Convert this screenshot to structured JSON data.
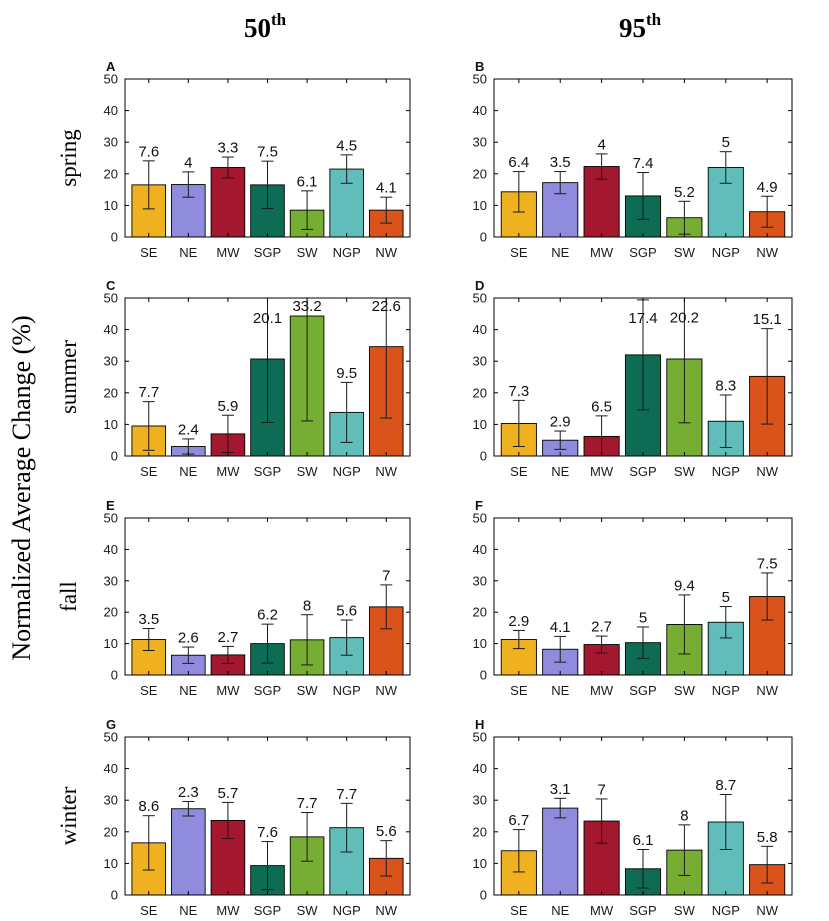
{
  "figure": {
    "column_headers": [
      {
        "number": "50",
        "suffix": "th"
      },
      {
        "number": "95",
        "suffix": "th"
      }
    ],
    "row_labels": [
      "spring",
      "summer",
      "fall",
      "winter"
    ],
    "y_axis_label": "Normalized Average Change (%)"
  },
  "colors": {
    "SE": "#EFB120",
    "NE": "#8F8CDE",
    "MW": "#A3182F",
    "SGP": "#0E6B54",
    "SW": "#76AD33",
    "NGP": "#60BDBA",
    "NW": "#D9531B"
  },
  "chart_data": [
    {
      "panel": "A",
      "type": "bar",
      "categories": [
        "SE",
        "NE",
        "MW",
        "SGP",
        "SW",
        "NGP",
        "NW"
      ],
      "values": [
        16.5,
        16.6,
        22.0,
        16.5,
        8.5,
        21.5,
        8.5
      ],
      "errors": [
        7.6,
        4,
        3.3,
        7.5,
        6.1,
        4.5,
        4.1
      ],
      "ylim": [
        0,
        50
      ],
      "yticks": [
        0,
        10,
        20,
        30,
        40,
        50
      ]
    },
    {
      "panel": "B",
      "type": "bar",
      "categories": [
        "SE",
        "NE",
        "MW",
        "SGP",
        "SW",
        "NGP",
        "NW"
      ],
      "values": [
        14.3,
        17.2,
        22.3,
        13.0,
        6.1,
        22.0,
        8.0
      ],
      "errors": [
        6.4,
        3.5,
        4,
        7.4,
        5.2,
        5,
        4.9
      ],
      "ylim": [
        0,
        50
      ],
      "yticks": [
        0,
        10,
        20,
        30,
        40,
        50
      ]
    },
    {
      "panel": "C",
      "type": "bar",
      "categories": [
        "SE",
        "NE",
        "MW",
        "SGP",
        "SW",
        "NGP",
        "NW"
      ],
      "values": [
        9.5,
        3.0,
        7.0,
        30.7,
        44.3,
        13.8,
        34.6
      ],
      "errors": [
        7.7,
        2.4,
        5.9,
        20.1,
        33.2,
        9.5,
        22.6
      ],
      "ylim": [
        0,
        50
      ],
      "yticks": [
        0,
        10,
        20,
        30,
        40,
        50
      ]
    },
    {
      "panel": "D",
      "type": "bar",
      "categories": [
        "SE",
        "NE",
        "MW",
        "SGP",
        "SW",
        "NGP",
        "NW"
      ],
      "values": [
        10.3,
        5.0,
        6.2,
        32.0,
        30.7,
        11.0,
        25.2
      ],
      "errors": [
        7.3,
        2.9,
        6.5,
        17.4,
        20.2,
        8.3,
        15.1
      ],
      "ylim": [
        0,
        50
      ],
      "yticks": [
        0,
        10,
        20,
        30,
        40,
        50
      ]
    },
    {
      "panel": "E",
      "type": "bar",
      "categories": [
        "SE",
        "NE",
        "MW",
        "SGP",
        "SW",
        "NGP",
        "NW"
      ],
      "values": [
        11.3,
        6.3,
        6.4,
        10.0,
        11.2,
        11.9,
        21.7
      ],
      "errors": [
        3.5,
        2.6,
        2.7,
        6.2,
        8,
        5.6,
        7
      ],
      "ylim": [
        0,
        50
      ],
      "yticks": [
        0,
        10,
        20,
        30,
        40,
        50
      ]
    },
    {
      "panel": "F",
      "type": "bar",
      "categories": [
        "SE",
        "NE",
        "MW",
        "SGP",
        "SW",
        "NGP",
        "NW"
      ],
      "values": [
        11.3,
        8.2,
        9.7,
        10.3,
        16.1,
        16.8,
        25.0
      ],
      "errors": [
        2.9,
        4.1,
        2.7,
        5,
        9.4,
        5,
        7.5
      ],
      "ylim": [
        0,
        50
      ],
      "yticks": [
        0,
        10,
        20,
        30,
        40,
        50
      ]
    },
    {
      "panel": "G",
      "type": "bar",
      "categories": [
        "SE",
        "NE",
        "MW",
        "SGP",
        "SW",
        "NGP",
        "NW"
      ],
      "values": [
        16.5,
        27.3,
        23.6,
        9.3,
        18.4,
        21.3,
        11.6
      ],
      "errors": [
        8.6,
        2.3,
        5.7,
        7.6,
        7.7,
        7.7,
        5.6
      ],
      "ylim": [
        0,
        50
      ],
      "yticks": [
        0,
        10,
        20,
        30,
        40,
        50
      ]
    },
    {
      "panel": "H",
      "type": "bar",
      "categories": [
        "SE",
        "NE",
        "MW",
        "SGP",
        "SW",
        "NGP",
        "NW"
      ],
      "values": [
        14.0,
        27.5,
        23.4,
        8.3,
        14.2,
        23.1,
        9.6
      ],
      "errors": [
        6.7,
        3.1,
        7,
        6.1,
        8,
        8.7,
        5.8
      ],
      "ylim": [
        0,
        50
      ],
      "yticks": [
        0,
        10,
        20,
        30,
        40,
        50
      ]
    }
  ]
}
